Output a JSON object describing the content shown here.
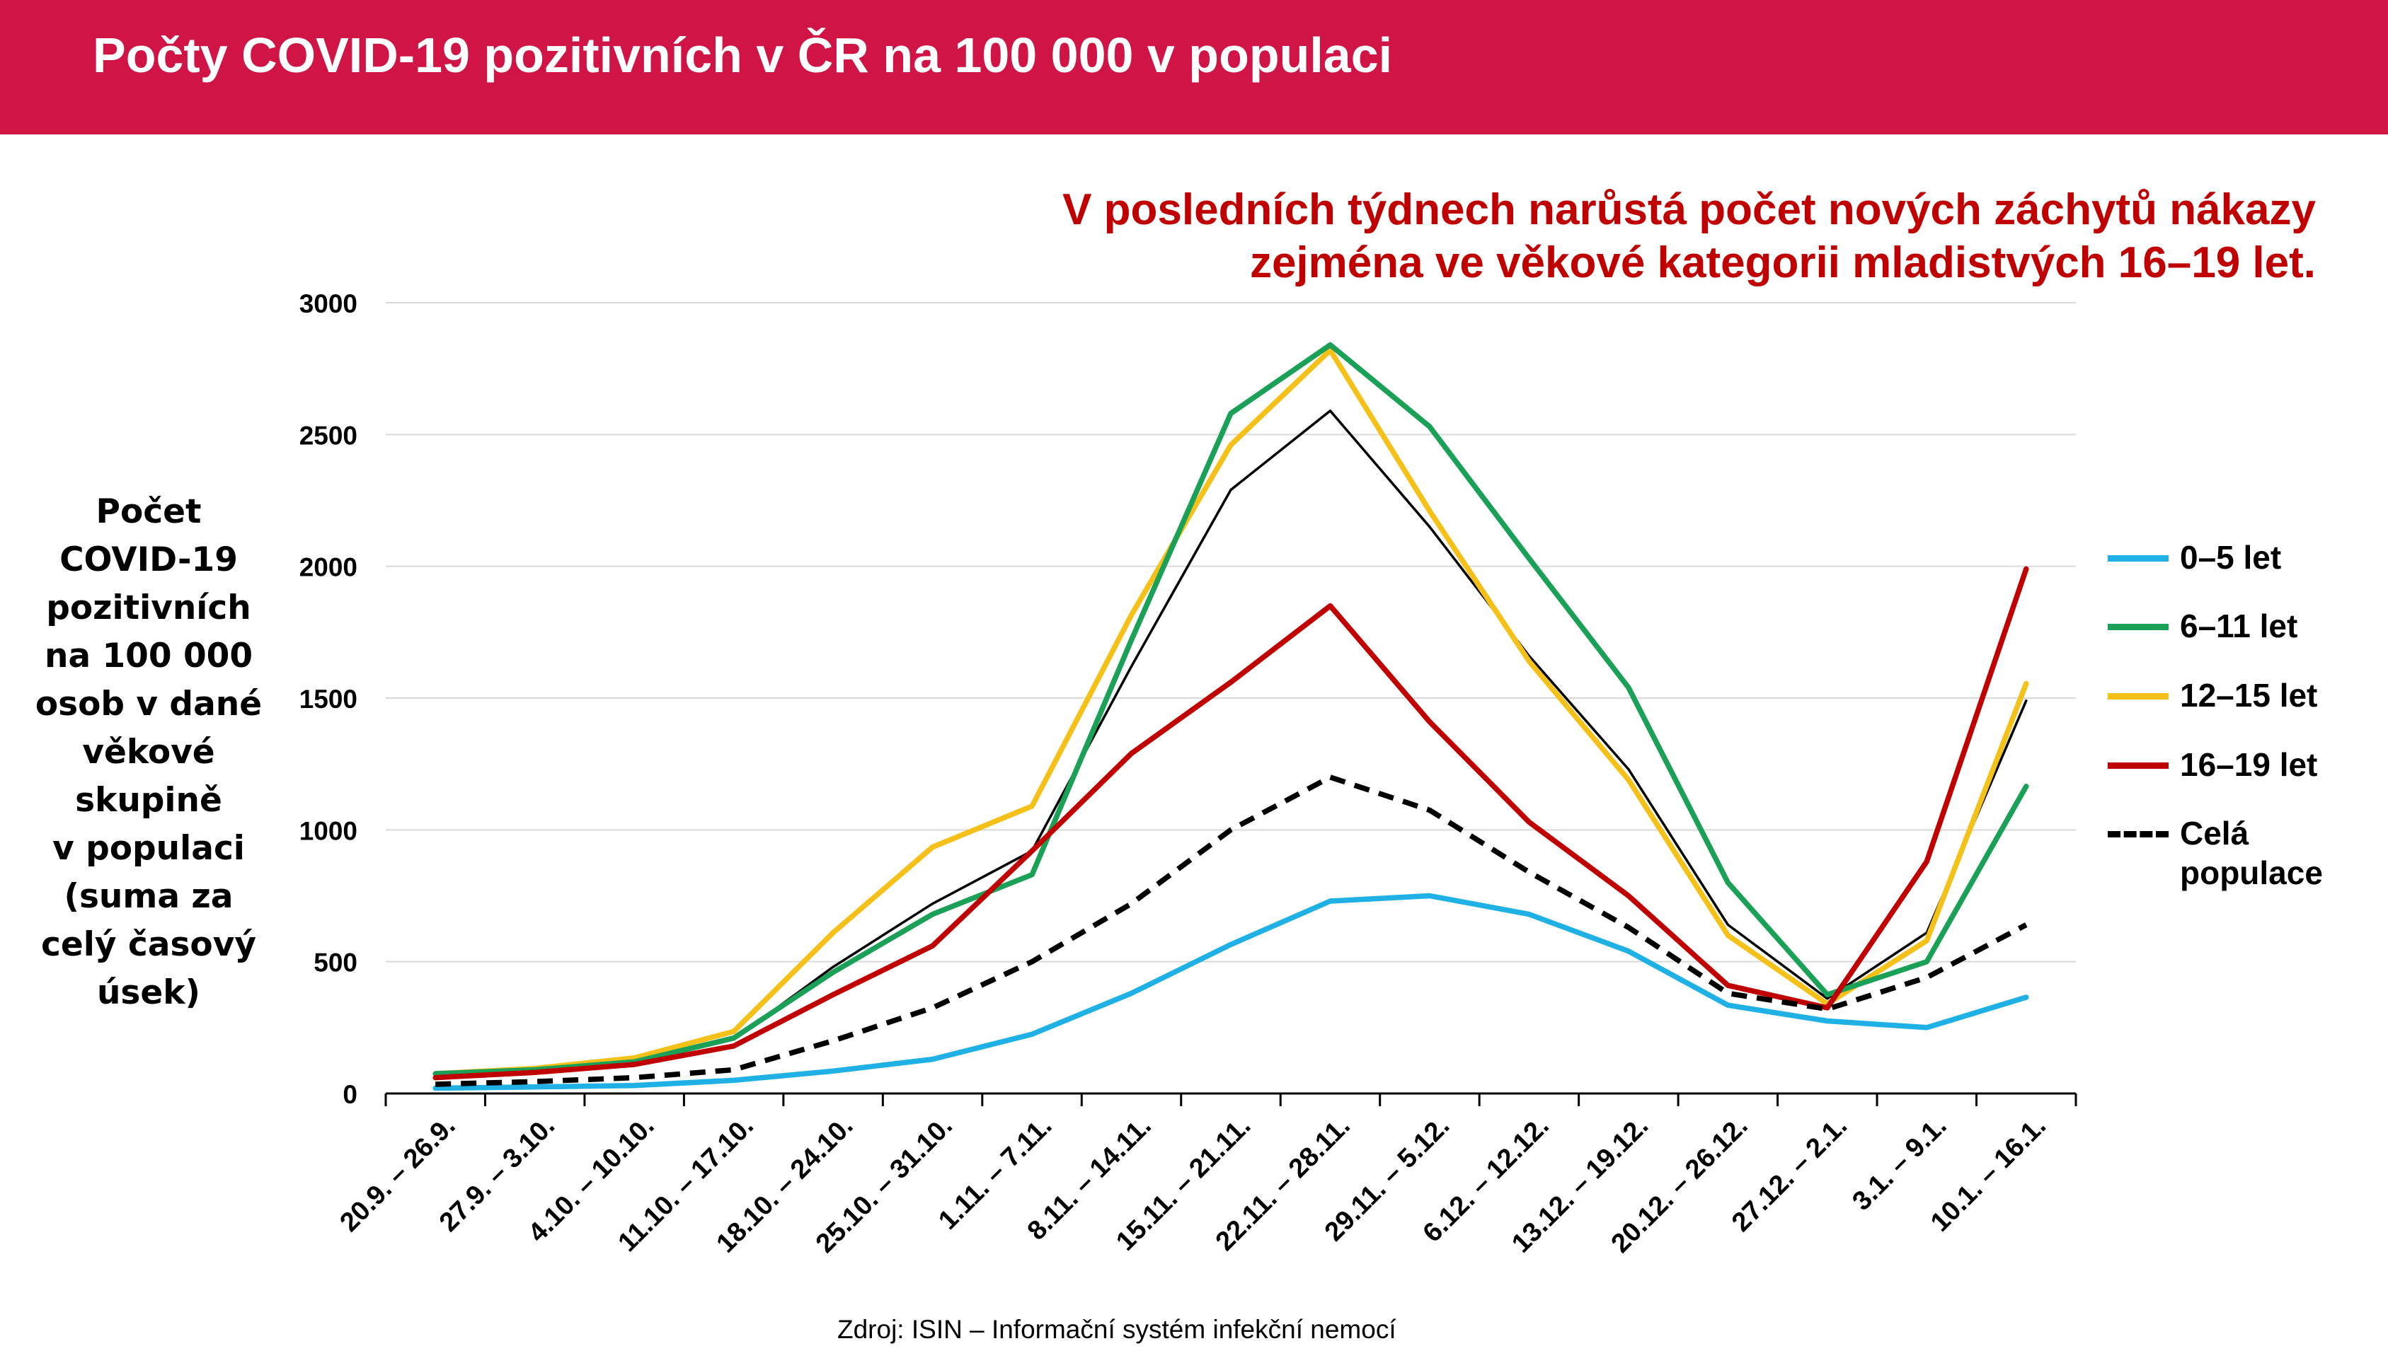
{
  "header": {
    "title": "Počty COVID-19 pozitivních v ČR na 100 000 v populaci",
    "background_color": "#d01446"
  },
  "headline": {
    "line1": "V posledních týdnech narůstá počet nových záchytů nákazy",
    "line2": "zejména ve věkové kategorii mladistvých 16–19 let.",
    "color": "#c00000"
  },
  "ylabel_lines": [
    "Počet",
    "COVID-19",
    "pozitivních",
    "na 100 000",
    "osob v dané",
    "věkové",
    "skupině",
    "v populaci",
    "(suma za",
    "celý časový",
    "úsek)"
  ],
  "source": "Zdroj: ISIN – Informační systém infekční nemocí",
  "chart_data": {
    "type": "line",
    "categories": [
      "20.9. – 26.9.",
      "27.9. – 3.10.",
      "4.10. – 10.10.",
      "11.10. – 17.10.",
      "18.10. – 24.10.",
      "25.10. – 31.10.",
      "1.11. – 7.11.",
      "8.11. – 14.11.",
      "15.11. – 21.11.",
      "22.11. – 28.11.",
      "29.11. – 5.12.",
      "6.12. – 12.12.",
      "13.12. – 19.12.",
      "20.12. – 26.12.",
      "27.12. – 2.1.",
      "3.1. – 9.1.",
      "10.1. – 16.1."
    ],
    "ylim": [
      0,
      3000
    ],
    "yticks": [
      0,
      500,
      1000,
      1500,
      2000,
      2500,
      3000
    ],
    "grid": true,
    "legend_position": "right",
    "series": [
      {
        "name": "0–5 let",
        "color": "#1fb1e6",
        "dashed": false,
        "values": [
          20,
          25,
          30,
          50,
          85,
          130,
          225,
          380,
          565,
          730,
          750,
          680,
          540,
          335,
          275,
          250,
          365
        ]
      },
      {
        "name": "6–11 let",
        "color": "#1aa157",
        "dashed": false,
        "values": [
          75,
          90,
          120,
          210,
          460,
          680,
          830,
          1720,
          2580,
          2840,
          2530,
          2030,
          1540,
          800,
          375,
          500,
          1165
        ]
      },
      {
        "name": "12–15 let",
        "color": "#f5c018",
        "dashed": false,
        "values": [
          75,
          95,
          135,
          235,
          610,
          935,
          1090,
          1815,
          2460,
          2820,
          2210,
          1640,
          1190,
          600,
          340,
          580,
          1555
        ]
      },
      {
        "name": "16–19 let",
        "color": "#c00000",
        "dashed": false,
        "values": [
          60,
          80,
          110,
          180,
          375,
          560,
          920,
          1290,
          1560,
          1850,
          1410,
          1030,
          750,
          410,
          325,
          880,
          1990
        ]
      },
      {
        "name": "Celá populace",
        "color": "#000000",
        "dashed": true,
        "values": [
          35,
          45,
          60,
          90,
          200,
          325,
          500,
          720,
          1000,
          1200,
          1075,
          840,
          630,
          380,
          320,
          440,
          640
        ]
      },
      {
        "color": "#000000",
        "dashed": false,
        "thin": true,
        "values": [
          65,
          85,
          115,
          205,
          480,
          720,
          920,
          1620,
          2290,
          2590,
          2150,
          1660,
          1230,
          640,
          360,
          610,
          1490
        ]
      }
    ]
  }
}
